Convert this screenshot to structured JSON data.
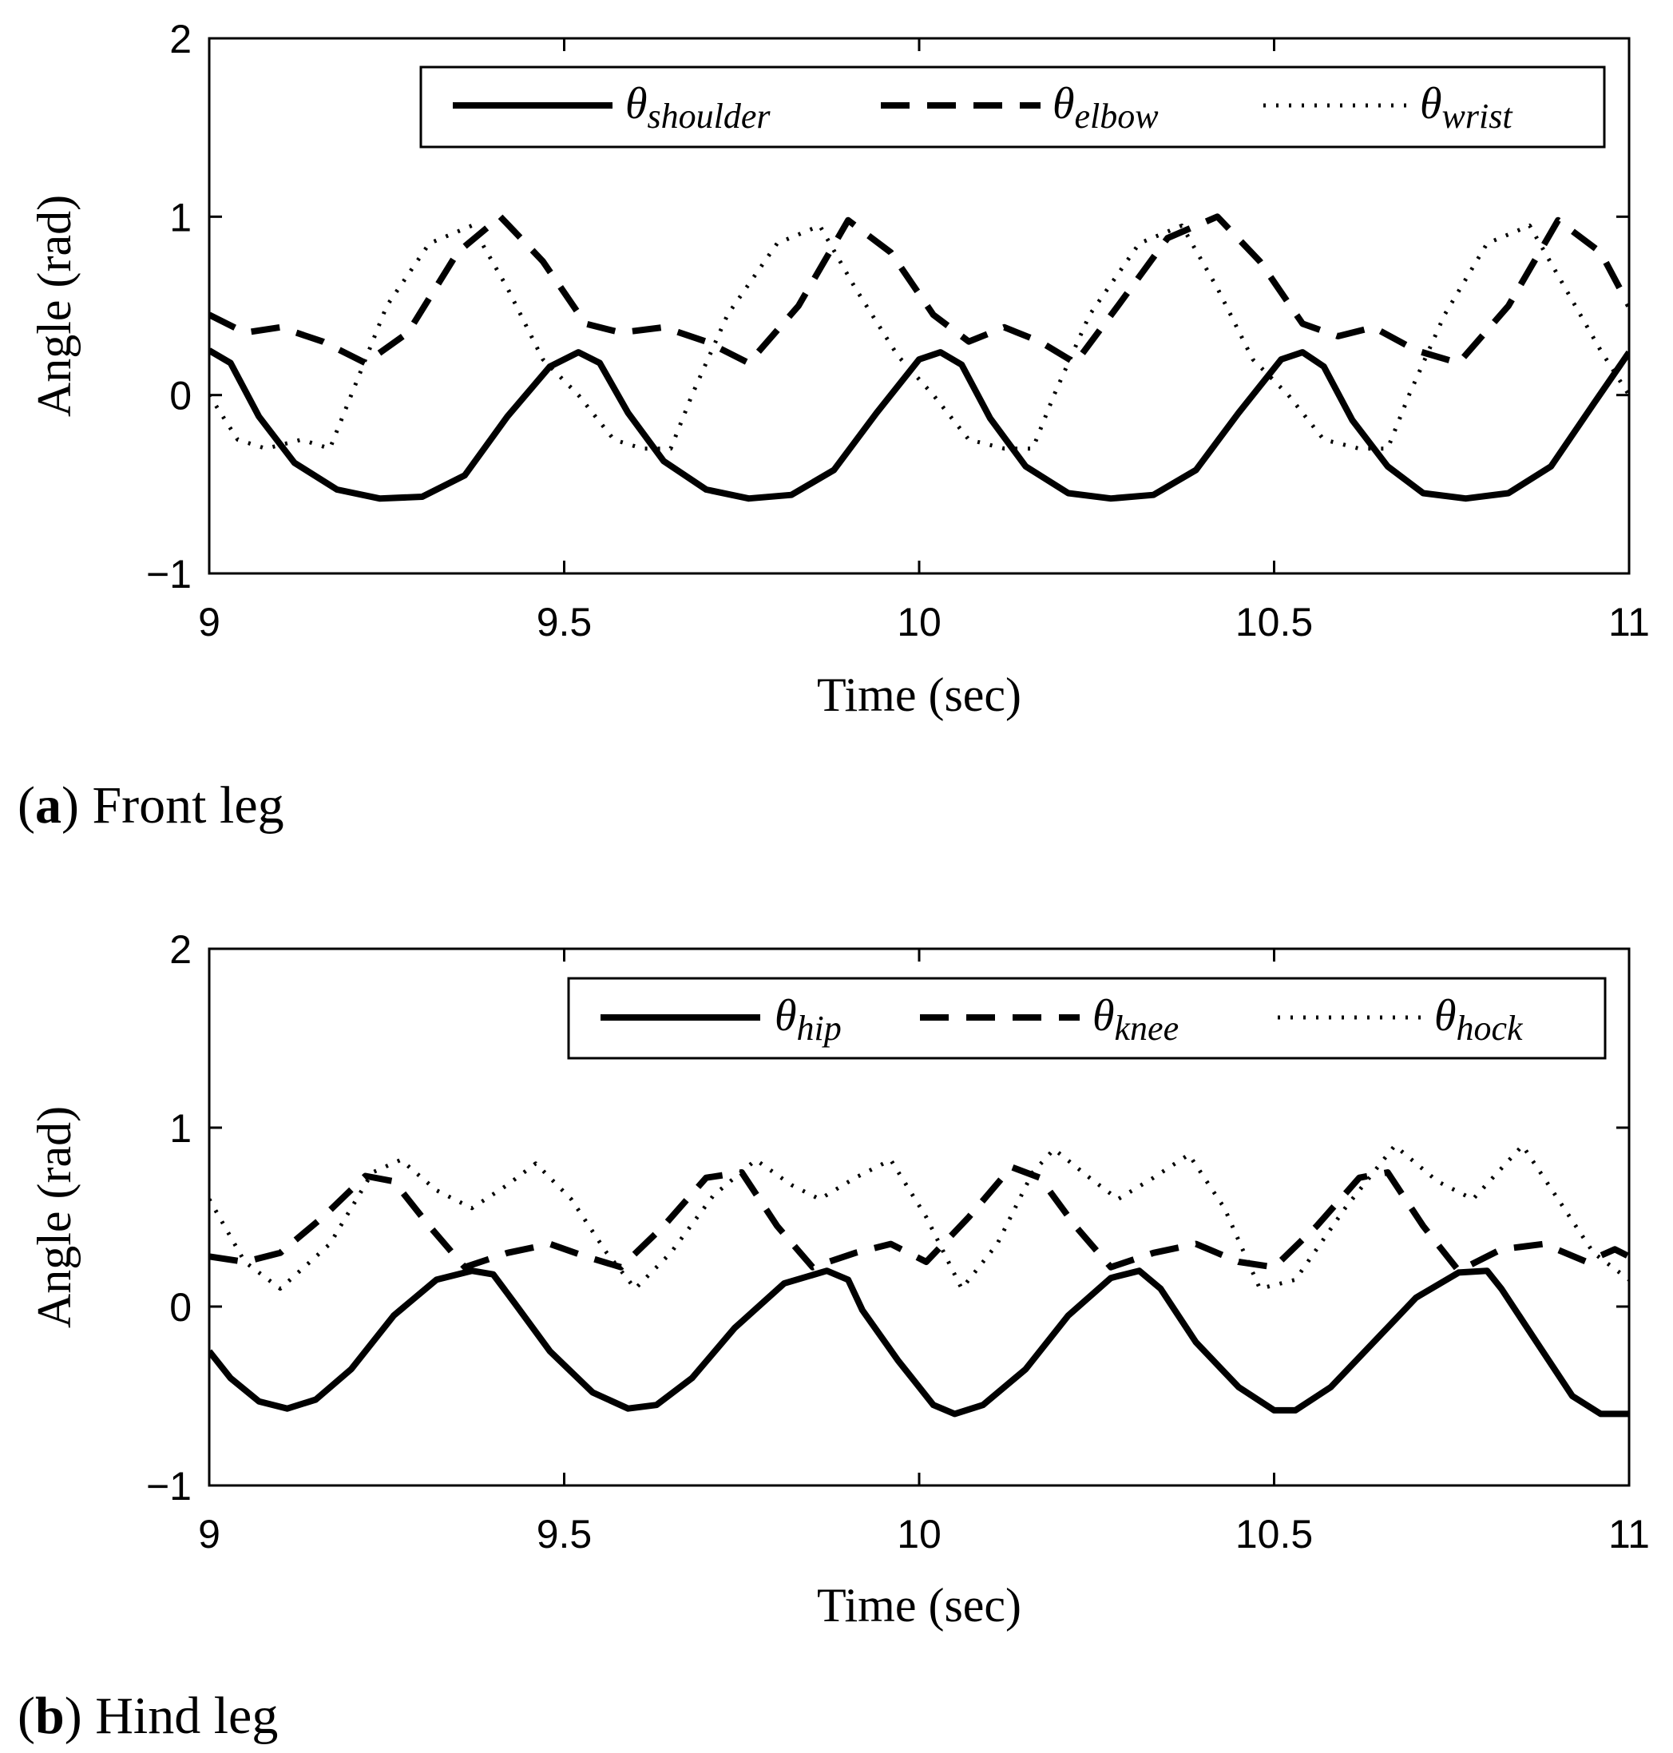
{
  "chart_data": [
    {
      "type": "line",
      "panel_tag": "a",
      "caption": "Front leg",
      "xlabel": "Time (sec)",
      "ylabel": "Angle (rad)",
      "xlim": [
        9,
        11
      ],
      "ylim": [
        -1,
        2
      ],
      "xticks": [
        9,
        9.5,
        10,
        10.5,
        11
      ],
      "xtick_labels": [
        "9",
        "9.5",
        "10",
        "10.5",
        "11"
      ],
      "yticks": [
        -1,
        0,
        1,
        2
      ],
      "ytick_labels": [
        "−1",
        "0",
        "1",
        "2"
      ],
      "legend_position": "top-right",
      "series": [
        {
          "name": "θ_shoulder",
          "symbol": "θ",
          "subscript": "shoulder",
          "style": "solid",
          "x": [
            9.0,
            9.03,
            9.07,
            9.12,
            9.18,
            9.24,
            9.3,
            9.36,
            9.42,
            9.48,
            9.52,
            9.55,
            9.59,
            9.64,
            9.7,
            9.76,
            9.82,
            9.88,
            9.94,
            10.0,
            10.03,
            10.06,
            10.1,
            10.15,
            10.21,
            10.27,
            10.33,
            10.39,
            10.45,
            10.51,
            10.54,
            10.57,
            10.61,
            10.66,
            10.71,
            10.77,
            10.83,
            10.89,
            10.95,
            11.0
          ],
          "y": [
            0.25,
            0.18,
            -0.12,
            -0.38,
            -0.53,
            -0.58,
            -0.57,
            -0.45,
            -0.12,
            0.16,
            0.24,
            0.18,
            -0.1,
            -0.37,
            -0.53,
            -0.58,
            -0.56,
            -0.42,
            -0.1,
            0.2,
            0.24,
            0.17,
            -0.13,
            -0.4,
            -0.55,
            -0.58,
            -0.56,
            -0.42,
            -0.1,
            0.2,
            0.24,
            0.16,
            -0.14,
            -0.4,
            -0.55,
            -0.58,
            -0.55,
            -0.4,
            -0.05,
            0.24
          ]
        },
        {
          "name": "θ_elbow",
          "symbol": "θ",
          "subscript": "elbow",
          "style": "dashed",
          "x": [
            9.0,
            9.05,
            9.1,
            9.16,
            9.22,
            9.28,
            9.35,
            9.41,
            9.47,
            9.53,
            9.58,
            9.64,
            9.7,
            9.76,
            9.83,
            9.9,
            9.96,
            10.02,
            10.07,
            10.12,
            10.17,
            10.22,
            10.28,
            10.35,
            10.42,
            10.48,
            10.54,
            10.59,
            10.64,
            10.7,
            10.76,
            10.83,
            10.9,
            10.96,
            11.0
          ],
          "y": [
            0.45,
            0.35,
            0.38,
            0.3,
            0.18,
            0.35,
            0.8,
            1.0,
            0.75,
            0.4,
            0.35,
            0.38,
            0.3,
            0.18,
            0.5,
            0.98,
            0.8,
            0.45,
            0.3,
            0.38,
            0.3,
            0.18,
            0.5,
            0.88,
            1.0,
            0.75,
            0.4,
            0.33,
            0.38,
            0.25,
            0.18,
            0.5,
            0.98,
            0.8,
            0.5
          ]
        },
        {
          "name": "θ_wrist",
          "symbol": "θ",
          "subscript": "wrist",
          "style": "dotted",
          "x": [
            9.0,
            9.04,
            9.08,
            9.13,
            9.17,
            9.2,
            9.25,
            9.31,
            9.37,
            9.42,
            9.47,
            9.52,
            9.57,
            9.61,
            9.65,
            9.68,
            9.73,
            9.8,
            9.86,
            9.91,
            9.97,
            10.02,
            10.07,
            10.12,
            10.16,
            10.19,
            10.24,
            10.31,
            10.37,
            10.42,
            10.47,
            10.52,
            10.57,
            10.62,
            10.66,
            10.69,
            10.74,
            10.8,
            10.86,
            10.91,
            10.96,
            11.0
          ],
          "y": [
            0.0,
            -0.25,
            -0.3,
            -0.25,
            -0.3,
            0.0,
            0.5,
            0.85,
            0.95,
            0.6,
            0.2,
            0.0,
            -0.25,
            -0.3,
            -0.3,
            0.0,
            0.45,
            0.85,
            0.95,
            0.6,
            0.22,
            0.0,
            -0.25,
            -0.3,
            -0.3,
            0.0,
            0.45,
            0.85,
            0.95,
            0.6,
            0.2,
            0.0,
            -0.25,
            -0.3,
            -0.3,
            0.0,
            0.45,
            0.85,
            0.95,
            0.6,
            0.25,
            0.0
          ]
        }
      ]
    },
    {
      "type": "line",
      "panel_tag": "b",
      "caption": "Hind leg",
      "xlabel": "Time (sec)",
      "ylabel": "Angle (rad)",
      "xlim": [
        9,
        11
      ],
      "ylim": [
        -1,
        2
      ],
      "xticks": [
        9,
        9.5,
        10,
        10.5,
        11
      ],
      "xtick_labels": [
        "9",
        "9.5",
        "10",
        "10.5",
        "11"
      ],
      "yticks": [
        -1,
        0,
        1,
        2
      ],
      "ytick_labels": [
        "−1",
        "0",
        "1",
        "2"
      ],
      "legend_position": "top-right",
      "series": [
        {
          "name": "θ_hip",
          "symbol": "θ",
          "subscript": "hip",
          "style": "solid",
          "x": [
            9.0,
            9.03,
            9.07,
            9.11,
            9.15,
            9.2,
            9.26,
            9.32,
            9.37,
            9.4,
            9.43,
            9.48,
            9.54,
            9.59,
            9.63,
            9.68,
            9.74,
            9.81,
            9.87,
            9.9,
            9.92,
            9.97,
            10.02,
            10.05,
            10.09,
            10.15,
            10.21,
            10.27,
            10.31,
            10.34,
            10.39,
            10.45,
            10.5,
            10.53,
            10.58,
            10.64,
            10.7,
            10.76,
            10.8,
            10.82,
            10.87,
            10.92,
            10.96,
            11.0
          ],
          "y": [
            -0.25,
            -0.4,
            -0.53,
            -0.57,
            -0.52,
            -0.35,
            -0.05,
            0.15,
            0.2,
            0.18,
            0.02,
            -0.25,
            -0.48,
            -0.57,
            -0.55,
            -0.4,
            -0.12,
            0.13,
            0.2,
            0.15,
            -0.02,
            -0.3,
            -0.55,
            -0.6,
            -0.55,
            -0.35,
            -0.05,
            0.16,
            0.2,
            0.1,
            -0.2,
            -0.45,
            -0.58,
            -0.58,
            -0.45,
            -0.2,
            0.05,
            0.19,
            0.2,
            0.1,
            -0.2,
            -0.5,
            -0.6,
            -0.6
          ]
        },
        {
          "name": "θ_knee",
          "symbol": "θ",
          "subscript": "knee",
          "style": "dashed",
          "x": [
            9.0,
            9.05,
            9.1,
            9.16,
            9.22,
            9.26,
            9.31,
            9.36,
            9.42,
            9.48,
            9.53,
            9.58,
            9.64,
            9.7,
            9.75,
            9.8,
            9.85,
            9.91,
            9.96,
            10.01,
            10.07,
            10.13,
            10.17,
            10.22,
            10.27,
            10.33,
            10.39,
            10.45,
            10.5,
            10.56,
            10.62,
            10.66,
            10.71,
            10.76,
            10.82,
            10.88,
            10.94,
            10.98,
            11.0
          ],
          "y": [
            0.28,
            0.25,
            0.3,
            0.5,
            0.73,
            0.7,
            0.45,
            0.22,
            0.3,
            0.35,
            0.28,
            0.22,
            0.45,
            0.72,
            0.75,
            0.45,
            0.22,
            0.3,
            0.35,
            0.25,
            0.5,
            0.78,
            0.72,
            0.45,
            0.22,
            0.3,
            0.35,
            0.25,
            0.22,
            0.45,
            0.72,
            0.75,
            0.45,
            0.2,
            0.32,
            0.35,
            0.25,
            0.32,
            0.28
          ]
        },
        {
          "name": "θ_hock",
          "symbol": "θ",
          "subscript": "hock",
          "style": "dotted",
          "x": [
            9.0,
            9.05,
            9.1,
            9.17,
            9.23,
            9.27,
            9.32,
            9.37,
            9.42,
            9.46,
            9.51,
            9.56,
            9.6,
            9.65,
            9.71,
            9.77,
            9.82,
            9.86,
            9.91,
            9.96,
            10.01,
            10.06,
            10.11,
            10.16,
            10.19,
            10.24,
            10.28,
            10.33,
            10.38,
            10.43,
            10.48,
            10.53,
            10.6,
            10.67,
            10.73,
            10.78,
            10.85,
            10.9,
            10.95,
            11.0
          ],
          "y": [
            0.6,
            0.25,
            0.1,
            0.35,
            0.75,
            0.82,
            0.65,
            0.55,
            0.68,
            0.8,
            0.6,
            0.3,
            0.1,
            0.3,
            0.62,
            0.82,
            0.68,
            0.6,
            0.72,
            0.82,
            0.5,
            0.1,
            0.35,
            0.75,
            0.88,
            0.72,
            0.6,
            0.72,
            0.85,
            0.55,
            0.1,
            0.15,
            0.55,
            0.9,
            0.7,
            0.6,
            0.9,
            0.6,
            0.3,
            0.15
          ]
        }
      ]
    }
  ]
}
